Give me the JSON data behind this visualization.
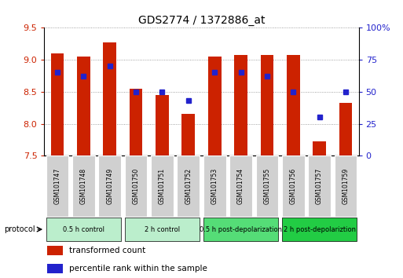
{
  "title": "GDS2774 / 1372886_at",
  "samples": [
    "GSM101747",
    "GSM101748",
    "GSM101749",
    "GSM101750",
    "GSM101751",
    "GSM101752",
    "GSM101753",
    "GSM101754",
    "GSM101755",
    "GSM101756",
    "GSM101757",
    "GSM101759"
  ],
  "bar_values": [
    9.1,
    9.05,
    9.27,
    8.55,
    8.45,
    8.15,
    9.05,
    9.08,
    9.08,
    9.08,
    7.73,
    8.32
  ],
  "bar_base": 7.5,
  "blue_values": [
    65,
    62,
    70,
    50,
    50,
    43,
    65,
    65,
    62,
    50,
    30,
    50
  ],
  "ylim": [
    7.5,
    9.5
  ],
  "yticks": [
    7.5,
    8.0,
    8.5,
    9.0,
    9.5
  ],
  "y2lim": [
    0,
    100
  ],
  "y2ticks": [
    0,
    25,
    50,
    75,
    100
  ],
  "bar_color": "#cc2200",
  "blue_color": "#2222cc",
  "bar_width": 0.5,
  "grid_color": "#888888",
  "groups": [
    {
      "label": "0.5 h control",
      "start": 0,
      "end": 3,
      "color": "#bbeecc"
    },
    {
      "label": "2 h control",
      "start": 3,
      "end": 6,
      "color": "#bbeecc"
    },
    {
      "label": "0.5 h post-depolarization",
      "start": 6,
      "end": 9,
      "color": "#55dd77"
    },
    {
      "label": "2 h post-depolariztion",
      "start": 9,
      "end": 12,
      "color": "#22cc44"
    }
  ],
  "sample_box_color": "#d0d0d0",
  "legend_items": [
    {
      "label": "transformed count",
      "color": "#cc2200"
    },
    {
      "label": "percentile rank within the sample",
      "color": "#2222cc"
    }
  ],
  "outer_border_color": "#000000",
  "figsize": [
    5.13,
    3.54
  ],
  "dpi": 100
}
